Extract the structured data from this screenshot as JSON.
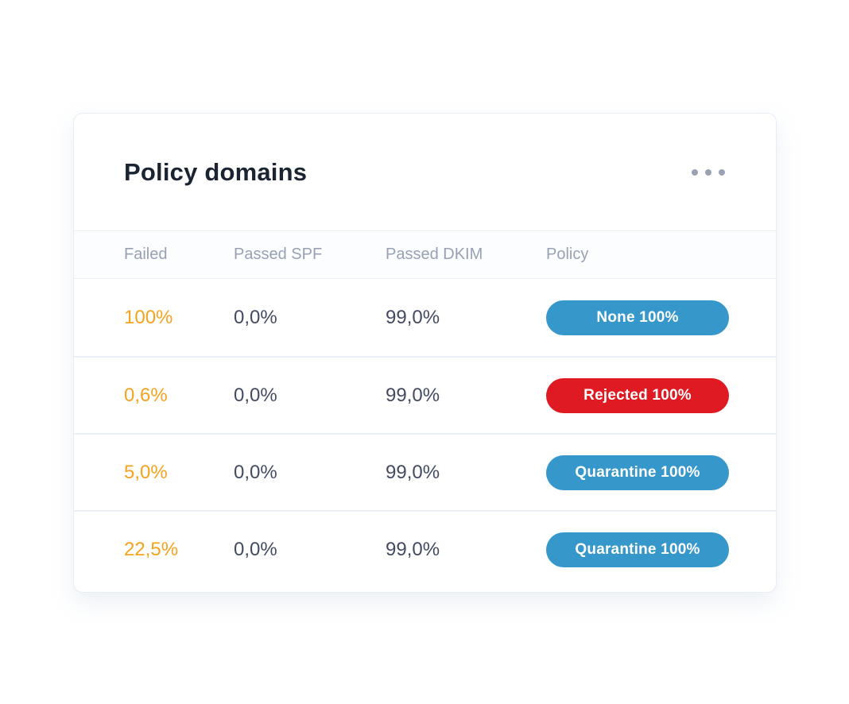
{
  "card": {
    "title": "Policy domains",
    "menu_icon": "ellipsis-horizontal",
    "columns": {
      "failed": "Failed",
      "passed_spf": "Passed SPF",
      "passed_dkim": "Passed DKIM",
      "policy": "Policy"
    },
    "rows": [
      {
        "failed": "100%",
        "passed_spf": "0,0%",
        "passed_dkim": "99,0%",
        "policy": {
          "label": "None 100%",
          "type": "none",
          "color": "#3697cb"
        }
      },
      {
        "failed": "0,6%",
        "passed_spf": "0,0%",
        "passed_dkim": "99,0%",
        "policy": {
          "label": "Rejected 100%",
          "type": "rejected",
          "color": "#e01a22"
        }
      },
      {
        "failed": "5,0%",
        "passed_spf": "0,0%",
        "passed_dkim": "99,0%",
        "policy": {
          "label": "Quarantine 100%",
          "type": "quarantine",
          "color": "#3697cb"
        }
      },
      {
        "failed": "22,5%",
        "passed_spf": "0,0%",
        "passed_dkim": "99,0%",
        "policy": {
          "label": "Quarantine 100%",
          "type": "quarantine",
          "color": "#3697cb"
        }
      }
    ],
    "colors": {
      "failed_text": "#f5a31f",
      "value_text": "#424b61",
      "header_text": "#98a1b4",
      "title_text": "#1b2431",
      "badge_blue": "#3697cb",
      "badge_red": "#e01a22"
    }
  }
}
